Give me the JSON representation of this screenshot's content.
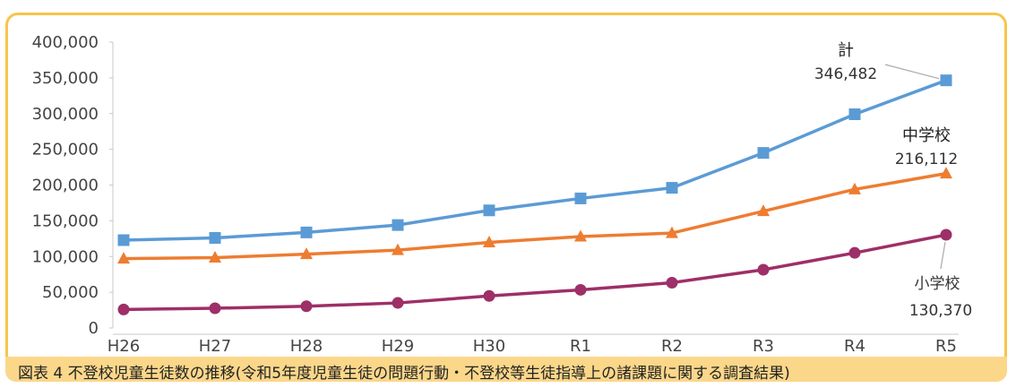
{
  "caption": "図表 4 不登校児童生徒数の推移(令和5年度児童生徒の問題行動・不登校等生徒指導上の諸課題に関する調査結果)",
  "colors": {
    "total": "#5b9bd5",
    "junior_high": "#ed7d31",
    "elementary": "#9e2f67",
    "frame": "#f6c54a",
    "caption_band": "#fbd78a"
  },
  "chart_data": {
    "type": "line",
    "categories": [
      "H26",
      "H27",
      "H28",
      "H29",
      "H30",
      "R1",
      "R2",
      "R3",
      "R4",
      "R5"
    ],
    "ylim": [
      0,
      400000
    ],
    "yticks": [
      0,
      50000,
      100000,
      150000,
      200000,
      250000,
      300000,
      350000,
      400000
    ],
    "ytick_labels": [
      "0",
      "50,000",
      "100,000",
      "150,000",
      "200,000",
      "250,000",
      "300,000",
      "350,000",
      "400,000"
    ],
    "grid": false,
    "series": [
      {
        "name": "計",
        "marker": "square",
        "color": "#5b9bd5",
        "values": [
          122897,
          126009,
          133683,
          144031,
          164528,
          181272,
          196127,
          244940,
          299048,
          346482
        ],
        "end_label": "346,482"
      },
      {
        "name": "中学校",
        "marker": "triangle",
        "color": "#ed7d31",
        "values": [
          97033,
          98408,
          103235,
          108999,
          119687,
          127922,
          132777,
          163442,
          193936,
          216112
        ],
        "end_label": "216,112"
      },
      {
        "name": "小学校",
        "marker": "circle",
        "color": "#9e2f67",
        "values": [
          25864,
          27583,
          30448,
          35032,
          44841,
          53350,
          63350,
          81498,
          105112,
          130370
        ],
        "end_label": "130,370"
      }
    ]
  }
}
